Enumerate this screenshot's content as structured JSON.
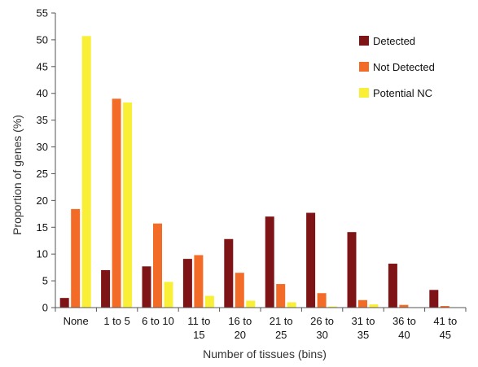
{
  "chart_data": {
    "type": "bar",
    "xlabel": "Number of tissues (bins)",
    "ylabel": "Proportion of genes (%)",
    "ylim": [
      0,
      55
    ],
    "yticks": [
      0,
      5,
      10,
      15,
      20,
      25,
      30,
      35,
      40,
      45,
      50,
      55
    ],
    "grid": false,
    "legend_position": "top-right",
    "categories": [
      [
        "None"
      ],
      [
        "1 to 5"
      ],
      [
        "6 to 10"
      ],
      [
        "11 to",
        "15"
      ],
      [
        "16 to",
        "20"
      ],
      [
        "21 to",
        "25"
      ],
      [
        "26 to",
        "30"
      ],
      [
        "31 to",
        "35"
      ],
      [
        "36 to",
        "40"
      ],
      [
        "41 to",
        "45"
      ]
    ],
    "series": [
      {
        "name": "Detected",
        "color": "#7f1416",
        "values": [
          1.8,
          7.0,
          7.7,
          9.1,
          12.8,
          17.0,
          17.7,
          14.1,
          8.2,
          3.3
        ]
      },
      {
        "name": "Not Detected",
        "color": "#f26c27",
        "values": [
          18.4,
          39.0,
          15.7,
          9.8,
          6.5,
          4.4,
          2.7,
          1.4,
          0.5,
          0.3
        ]
      },
      {
        "name": "Potential NC",
        "color": "#f9ef36",
        "values": [
          50.7,
          38.3,
          4.8,
          2.2,
          1.3,
          1.0,
          0.2,
          0.6,
          0.0,
          0.0
        ]
      }
    ]
  }
}
